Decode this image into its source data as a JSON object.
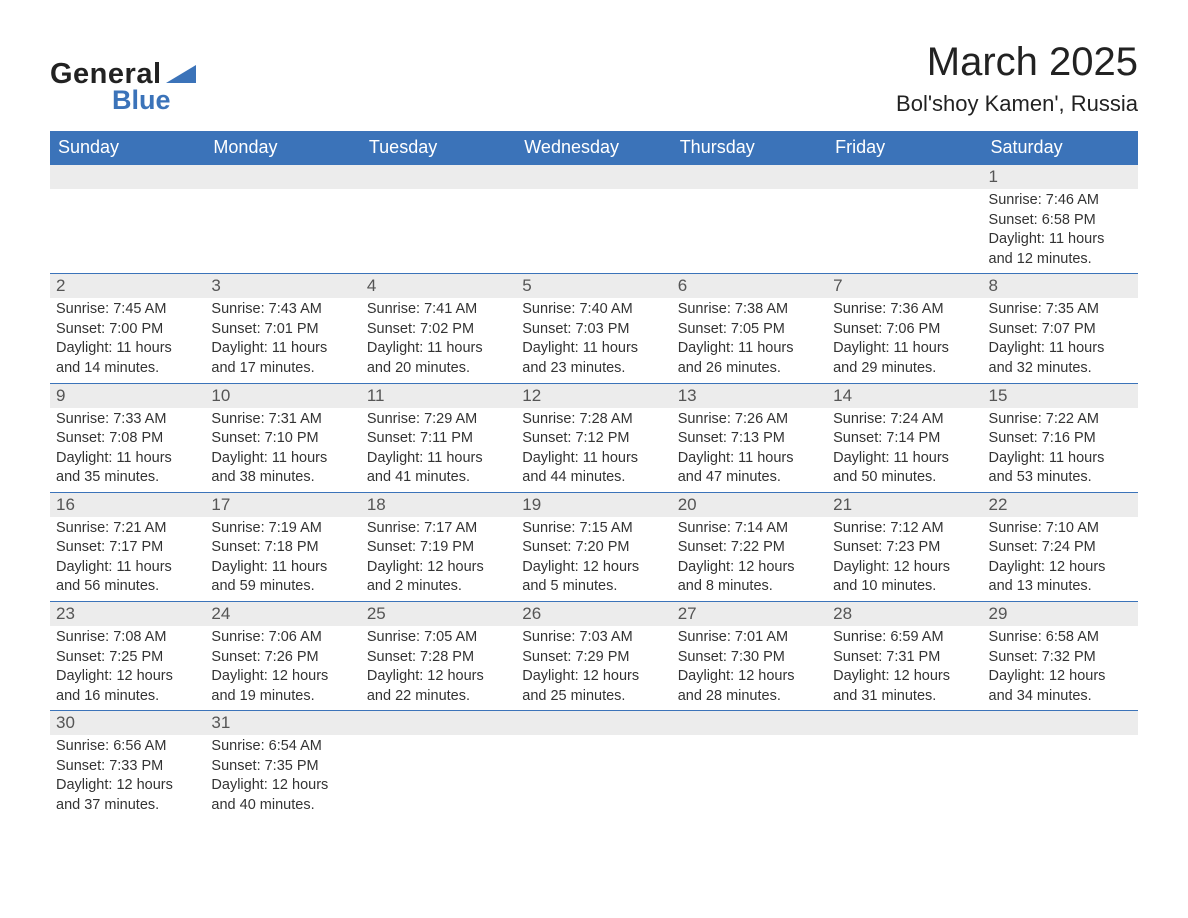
{
  "logo": {
    "text_general": "General",
    "text_blue": "Blue",
    "triangle_color": "#3b73b9"
  },
  "title": {
    "month": "March 2025",
    "location": "Bol'shoy Kamen', Russia"
  },
  "colors": {
    "header_bg": "#3b73b9",
    "header_text": "#ffffff",
    "daynum_bg": "#ececec",
    "daynum_text": "#555555",
    "body_text": "#333333",
    "border": "#3b73b9"
  },
  "fonts": {
    "month_title_size": 40,
    "location_size": 22,
    "weekday_size": 18,
    "daynum_size": 17,
    "content_size": 14.5
  },
  "weekdays": [
    "Sunday",
    "Monday",
    "Tuesday",
    "Wednesday",
    "Thursday",
    "Friday",
    "Saturday"
  ],
  "weeks": [
    [
      null,
      null,
      null,
      null,
      null,
      null,
      {
        "n": "1",
        "sunrise": "7:46 AM",
        "sunset": "6:58 PM",
        "dl": "11 hours and 12 minutes."
      }
    ],
    [
      {
        "n": "2",
        "sunrise": "7:45 AM",
        "sunset": "7:00 PM",
        "dl": "11 hours and 14 minutes."
      },
      {
        "n": "3",
        "sunrise": "7:43 AM",
        "sunset": "7:01 PM",
        "dl": "11 hours and 17 minutes."
      },
      {
        "n": "4",
        "sunrise": "7:41 AM",
        "sunset": "7:02 PM",
        "dl": "11 hours and 20 minutes."
      },
      {
        "n": "5",
        "sunrise": "7:40 AM",
        "sunset": "7:03 PM",
        "dl": "11 hours and 23 minutes."
      },
      {
        "n": "6",
        "sunrise": "7:38 AM",
        "sunset": "7:05 PM",
        "dl": "11 hours and 26 minutes."
      },
      {
        "n": "7",
        "sunrise": "7:36 AM",
        "sunset": "7:06 PM",
        "dl": "11 hours and 29 minutes."
      },
      {
        "n": "8",
        "sunrise": "7:35 AM",
        "sunset": "7:07 PM",
        "dl": "11 hours and 32 minutes."
      }
    ],
    [
      {
        "n": "9",
        "sunrise": "7:33 AM",
        "sunset": "7:08 PM",
        "dl": "11 hours and 35 minutes."
      },
      {
        "n": "10",
        "sunrise": "7:31 AM",
        "sunset": "7:10 PM",
        "dl": "11 hours and 38 minutes."
      },
      {
        "n": "11",
        "sunrise": "7:29 AM",
        "sunset": "7:11 PM",
        "dl": "11 hours and 41 minutes."
      },
      {
        "n": "12",
        "sunrise": "7:28 AM",
        "sunset": "7:12 PM",
        "dl": "11 hours and 44 minutes."
      },
      {
        "n": "13",
        "sunrise": "7:26 AM",
        "sunset": "7:13 PM",
        "dl": "11 hours and 47 minutes."
      },
      {
        "n": "14",
        "sunrise": "7:24 AM",
        "sunset": "7:14 PM",
        "dl": "11 hours and 50 minutes."
      },
      {
        "n": "15",
        "sunrise": "7:22 AM",
        "sunset": "7:16 PM",
        "dl": "11 hours and 53 minutes."
      }
    ],
    [
      {
        "n": "16",
        "sunrise": "7:21 AM",
        "sunset": "7:17 PM",
        "dl": "11 hours and 56 minutes."
      },
      {
        "n": "17",
        "sunrise": "7:19 AM",
        "sunset": "7:18 PM",
        "dl": "11 hours and 59 minutes."
      },
      {
        "n": "18",
        "sunrise": "7:17 AM",
        "sunset": "7:19 PM",
        "dl": "12 hours and 2 minutes."
      },
      {
        "n": "19",
        "sunrise": "7:15 AM",
        "sunset": "7:20 PM",
        "dl": "12 hours and 5 minutes."
      },
      {
        "n": "20",
        "sunrise": "7:14 AM",
        "sunset": "7:22 PM",
        "dl": "12 hours and 8 minutes."
      },
      {
        "n": "21",
        "sunrise": "7:12 AM",
        "sunset": "7:23 PM",
        "dl": "12 hours and 10 minutes."
      },
      {
        "n": "22",
        "sunrise": "7:10 AM",
        "sunset": "7:24 PM",
        "dl": "12 hours and 13 minutes."
      }
    ],
    [
      {
        "n": "23",
        "sunrise": "7:08 AM",
        "sunset": "7:25 PM",
        "dl": "12 hours and 16 minutes."
      },
      {
        "n": "24",
        "sunrise": "7:06 AM",
        "sunset": "7:26 PM",
        "dl": "12 hours and 19 minutes."
      },
      {
        "n": "25",
        "sunrise": "7:05 AM",
        "sunset": "7:28 PM",
        "dl": "12 hours and 22 minutes."
      },
      {
        "n": "26",
        "sunrise": "7:03 AM",
        "sunset": "7:29 PM",
        "dl": "12 hours and 25 minutes."
      },
      {
        "n": "27",
        "sunrise": "7:01 AM",
        "sunset": "7:30 PM",
        "dl": "12 hours and 28 minutes."
      },
      {
        "n": "28",
        "sunrise": "6:59 AM",
        "sunset": "7:31 PM",
        "dl": "12 hours and 31 minutes."
      },
      {
        "n": "29",
        "sunrise": "6:58 AM",
        "sunset": "7:32 PM",
        "dl": "12 hours and 34 minutes."
      }
    ],
    [
      {
        "n": "30",
        "sunrise": "6:56 AM",
        "sunset": "7:33 PM",
        "dl": "12 hours and 37 minutes."
      },
      {
        "n": "31",
        "sunrise": "6:54 AM",
        "sunset": "7:35 PM",
        "dl": "12 hours and 40 minutes."
      },
      null,
      null,
      null,
      null,
      null
    ]
  ],
  "labels": {
    "sunrise": "Sunrise: ",
    "sunset": "Sunset: ",
    "daylight": "Daylight: "
  }
}
